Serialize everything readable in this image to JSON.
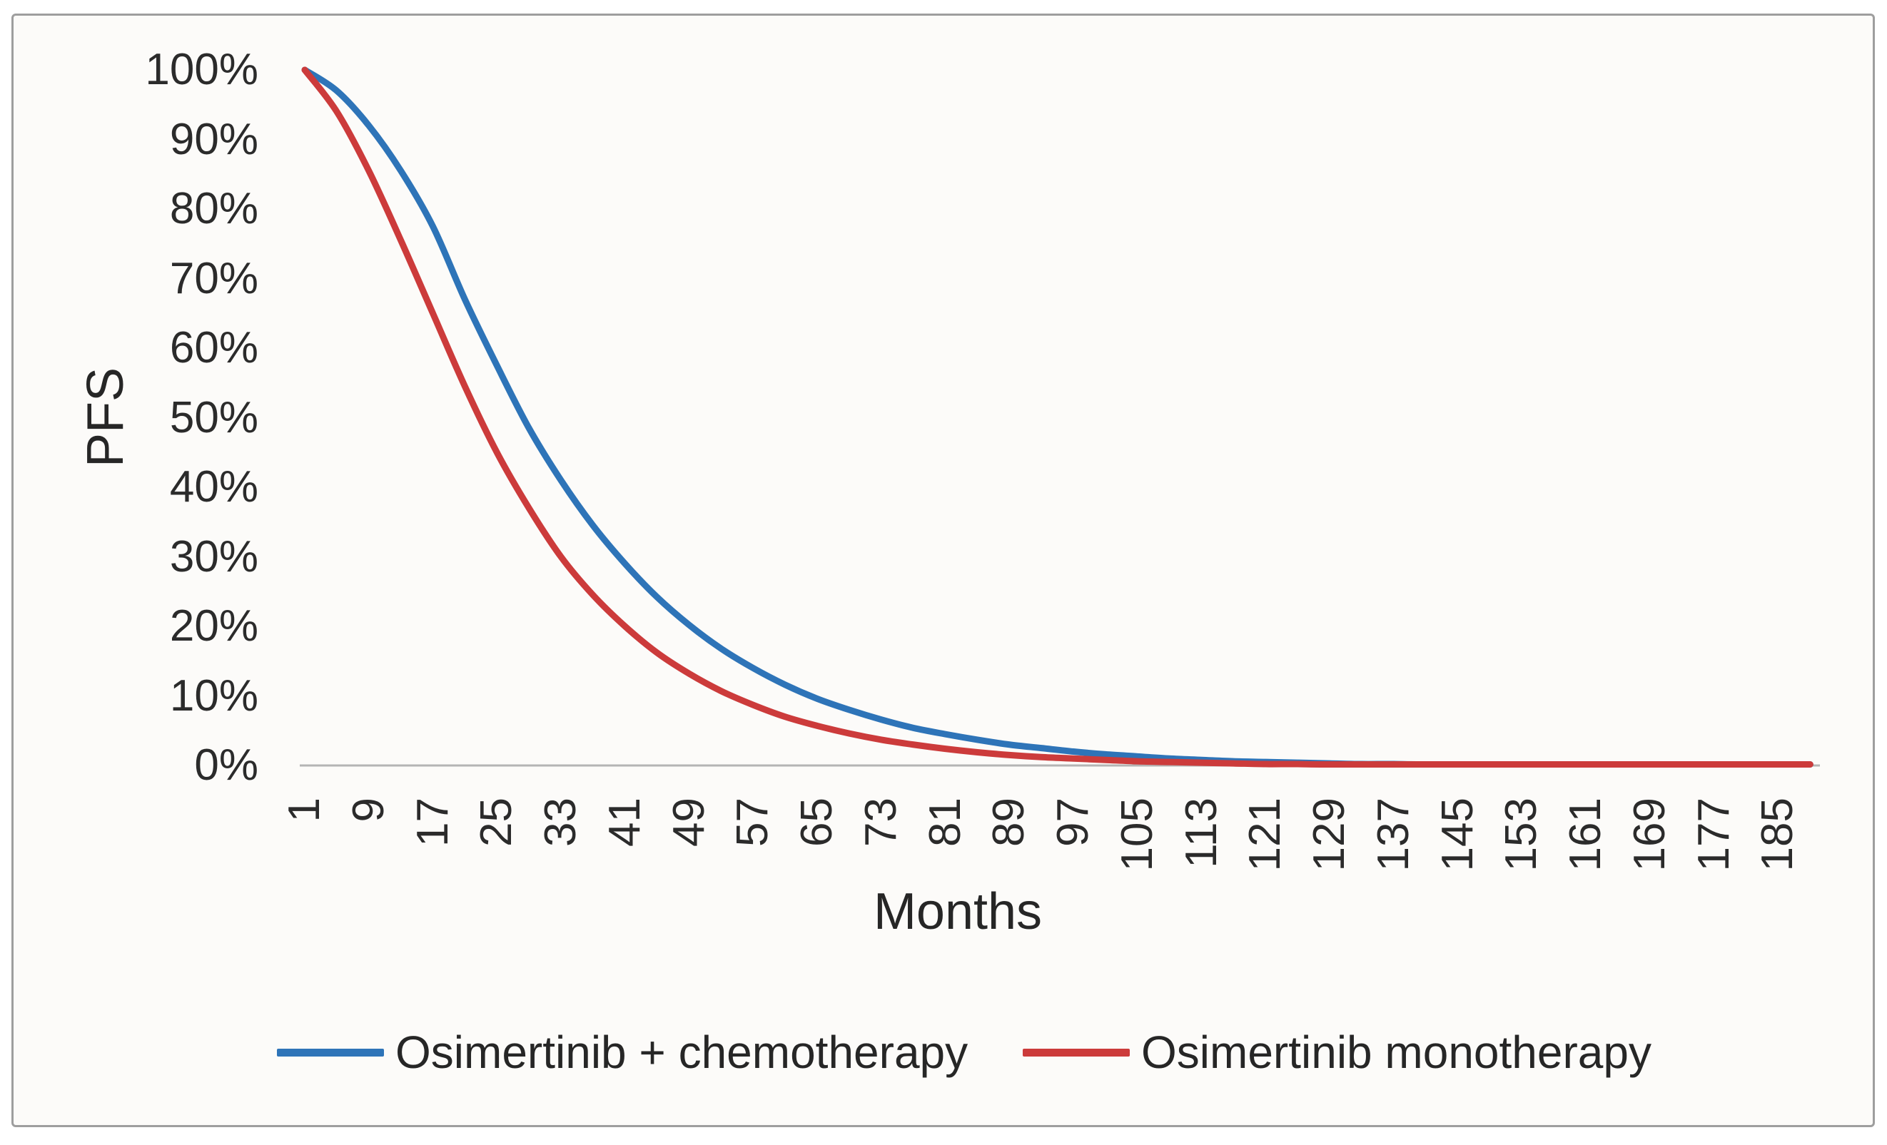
{
  "chart_data": {
    "type": "line",
    "title": "",
    "xlabel": "Months",
    "ylabel": "PFS",
    "grid": false,
    "legend_position": "bottom",
    "xlim": [
      1,
      189
    ],
    "ylim": [
      0,
      100
    ],
    "x_tick_interval": 8,
    "x_ticks": [
      1,
      9,
      17,
      25,
      33,
      41,
      49,
      57,
      65,
      73,
      81,
      89,
      97,
      105,
      113,
      121,
      129,
      137,
      145,
      153,
      161,
      169,
      177,
      185
    ],
    "y_tick_values": [
      100,
      90,
      80,
      70,
      60,
      50,
      40,
      30,
      20,
      10,
      0
    ],
    "y_tick_labels": [
      "100%",
      "90%",
      "80%",
      "70%",
      "60%",
      "50%",
      "40%",
      "30%",
      "20%",
      "10%",
      "0%"
    ],
    "x": [
      1,
      5,
      9,
      13,
      17,
      21,
      25,
      29,
      33,
      37,
      41,
      45,
      49,
      53,
      57,
      61,
      65,
      69,
      73,
      77,
      81,
      85,
      89,
      93,
      97,
      101,
      105,
      109,
      113,
      117,
      121,
      125,
      129,
      133,
      137,
      141,
      145,
      149,
      153,
      157,
      161,
      165,
      169,
      173,
      177,
      181,
      185,
      189
    ],
    "series": [
      {
        "name": "Osimertinib + chemotherapy",
        "color": "#2E74B8",
        "values": [
          100,
          97,
          92,
          85.5,
          77.5,
          67,
          57.5,
          48.5,
          41,
          34.5,
          29,
          24.2,
          20.2,
          16.8,
          14,
          11.6,
          9.6,
          8,
          6.6,
          5.4,
          4.5,
          3.7,
          3,
          2.5,
          2,
          1.6,
          1.3,
          1,
          0.8,
          0.6,
          0.5,
          0.4,
          0.3,
          0.2,
          0.2,
          0.1,
          0.1,
          0.1,
          0,
          0,
          0,
          0,
          0,
          0,
          0,
          0,
          0,
          0
        ]
      },
      {
        "name": "Osimertinib monotherapy",
        "color": "#CC3B3B",
        "values": [
          100,
          94,
          85.5,
          75.5,
          65,
          54.5,
          45,
          37,
          30,
          24.5,
          20,
          16.2,
          13.2,
          10.7,
          8.7,
          7,
          5.7,
          4.6,
          3.7,
          3,
          2.4,
          1.9,
          1.5,
          1.2,
          1,
          0.8,
          0.6,
          0.5,
          0.4,
          0.3,
          0.2,
          0.2,
          0.1,
          0.1,
          0.1,
          0,
          0,
          0,
          0,
          0,
          0,
          0,
          0,
          0,
          0,
          0,
          0,
          0
        ]
      }
    ],
    "axis_line_color": "#b4b4b4",
    "text_color": "#2b2b2b"
  }
}
